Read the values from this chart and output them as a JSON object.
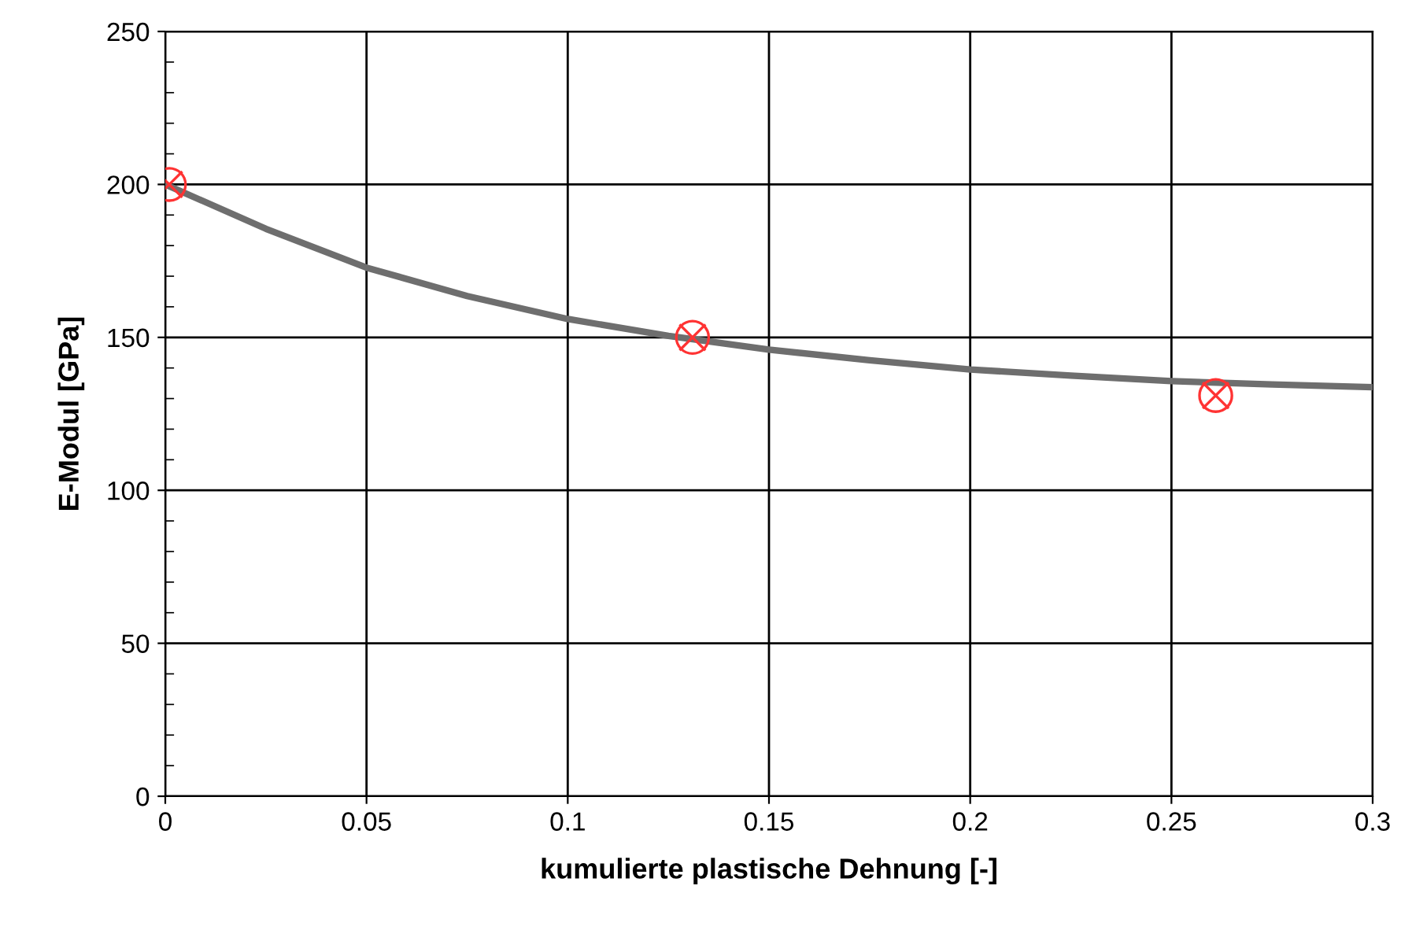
{
  "chart_data": {
    "type": "line",
    "xlabel": "kumulierte plastische Dehnung [-]",
    "ylabel": "E-Modul [GPa]",
    "xlim": [
      0,
      0.3
    ],
    "xticks": [
      0,
      0.05,
      0.1,
      0.15,
      0.2,
      0.25,
      0.3
    ],
    "ylim": [
      0,
      250
    ],
    "yticks": [
      0,
      50,
      100,
      150,
      200,
      250
    ],
    "grid": true,
    "series": [
      {
        "color": "#6e6e6e",
        "x": [
          0,
          0.025,
          0.05,
          0.075,
          0.1,
          0.125,
          0.15,
          0.175,
          0.2,
          0.225,
          0.25,
          0.275,
          0.3
        ],
        "values": [
          200,
          185.5,
          172.8,
          163.5,
          156,
          150.5,
          146,
          142.5,
          139.5,
          137.5,
          135.7,
          134.6,
          133.7
        ]
      },
      {
        "type": "scatter",
        "color": "#ff3333",
        "marker": "circle",
        "x": [
          0.001,
          0.131,
          0.261
        ],
        "values": [
          200,
          150,
          131
        ]
      }
    ]
  }
}
